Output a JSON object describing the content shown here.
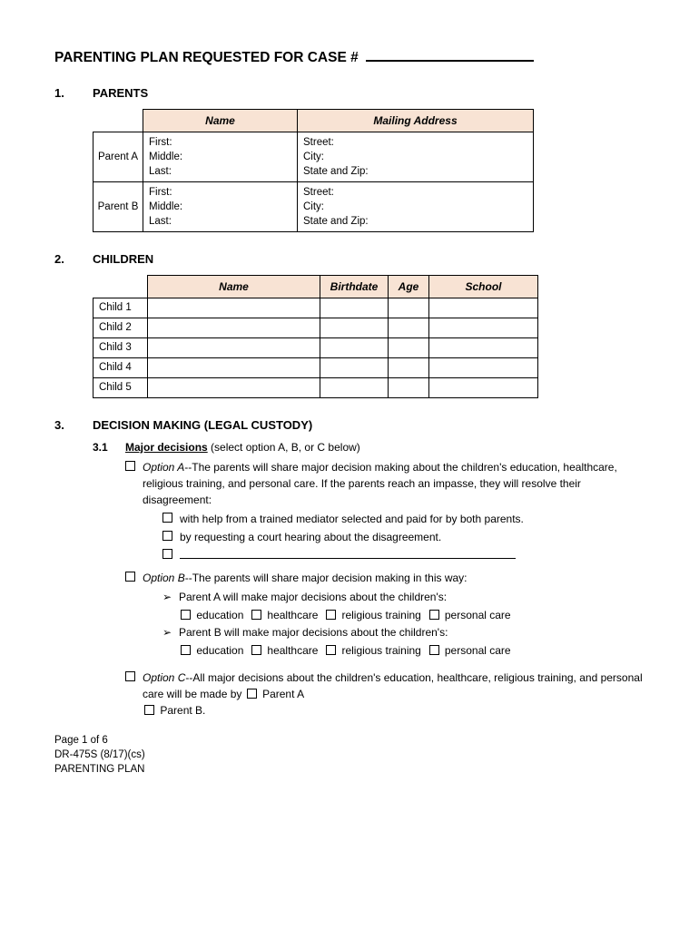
{
  "title_prefix": "PARENTING PLAN REQUESTED FOR CASE #",
  "sections": {
    "s1": {
      "num": "1.",
      "head": "PARENTS"
    },
    "s2": {
      "num": "2.",
      "head": "CHILDREN"
    },
    "s3": {
      "num": "3.",
      "head": "DECISION MAKING (LEGAL CUSTODY)"
    }
  },
  "parents_table": {
    "headers": {
      "name": "Name",
      "addr": "Mailing Address"
    },
    "rows": [
      {
        "label": "Parent A",
        "name_lines": [
          "First:",
          "Middle:",
          "Last:"
        ],
        "addr_lines": [
          "Street:",
          "City:",
          "State and Zip:"
        ]
      },
      {
        "label": "Parent B",
        "name_lines": [
          "First:",
          "Middle:",
          "Last:"
        ],
        "addr_lines": [
          "Street:",
          "City:",
          "State and Zip:"
        ]
      }
    ]
  },
  "children_table": {
    "headers": {
      "name": "Name",
      "bd": "Birthdate",
      "age": "Age",
      "school": "School"
    },
    "rows": [
      "Child 1",
      "Child 2",
      "Child 3",
      "Child 4",
      "Child 5"
    ]
  },
  "s3_1": {
    "num": "3.1",
    "head": "Major decisions",
    "note": "  (select option A, B, or C below)",
    "optionA": {
      "label": "Option A",
      "text": "--The parents will share major decision making about the children's education, healthcare, religious training, and personal care.  If the parents reach an impasse, they will resolve their disagreement:",
      "sub1": "with help from a trained mediator selected and paid for by both parents.",
      "sub2": "by requesting a court hearing about the disagreement."
    },
    "optionB": {
      "label": "Option B",
      "text": "--The parents will share major decision making in this way:",
      "b1": "Parent A will make major decisions about the children's:",
      "b2": "Parent B will make major decisions about the children's:",
      "c1": "education",
      "c2": "healthcare",
      "c3": "religious training",
      "c4": "personal care"
    },
    "optionC": {
      "label": "Option C",
      "text1": "--All major decisions about the children's education, healthcare, religious training, and personal care will be made by ",
      "pa": "Parent A",
      "pb": "Parent B."
    }
  },
  "footer": {
    "l1": "Page 1 of 6",
    "l2": "DR-475S (8/17)(cs)",
    "l3": "PARENTING PLAN"
  },
  "colors": {
    "header_bg": "#f8e3d4"
  }
}
